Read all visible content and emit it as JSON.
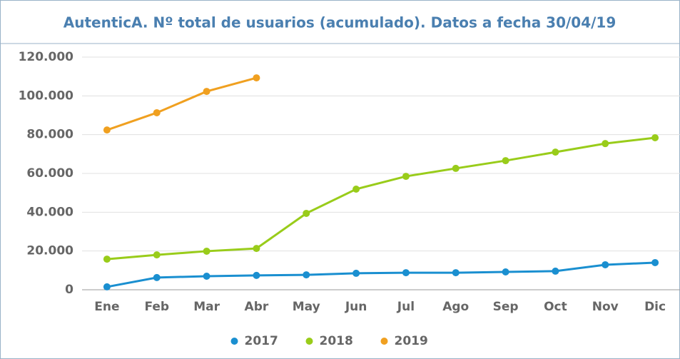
{
  "chart_data": {
    "type": "line",
    "title": "AutenticA. Nº total de usuarios (acumulado). Datos a fecha 30/04/19",
    "categories": [
      "Ene",
      "Feb",
      "Mar",
      "Abr",
      "May",
      "Jun",
      "Jul",
      "Ago",
      "Sep",
      "Oct",
      "Nov",
      "Dic"
    ],
    "series": [
      {
        "name": "2017",
        "color": "#1a8fd0",
        "values": [
          1500,
          6300,
          7000,
          7400,
          7700,
          8500,
          8800,
          8800,
          9200,
          9600,
          12900,
          14000
        ]
      },
      {
        "name": "2018",
        "color": "#99cc1a",
        "values": [
          15800,
          18000,
          19900,
          21300,
          39400,
          51900,
          58500,
          62600,
          66600,
          71000,
          75400,
          78400
        ]
      },
      {
        "name": "2019",
        "color": "#f0a020",
        "values": [
          82400,
          91300,
          102300,
          109300,
          null,
          null,
          null,
          null,
          null,
          null,
          null,
          null
        ]
      }
    ],
    "ylim": [
      0,
      120000
    ],
    "yticks": [
      0,
      {
        "value": 20000,
        "label": "20.000"
      },
      {
        "value": 40000,
        "label": "40.000"
      },
      {
        "value": 60000,
        "label": "60.000"
      },
      {
        "value": 80000,
        "label": "80.000"
      },
      {
        "value": 100000,
        "label": "100.000"
      },
      {
        "value": 120000,
        "label": "120.000"
      }
    ],
    "grid": true,
    "legend": "bottom"
  }
}
